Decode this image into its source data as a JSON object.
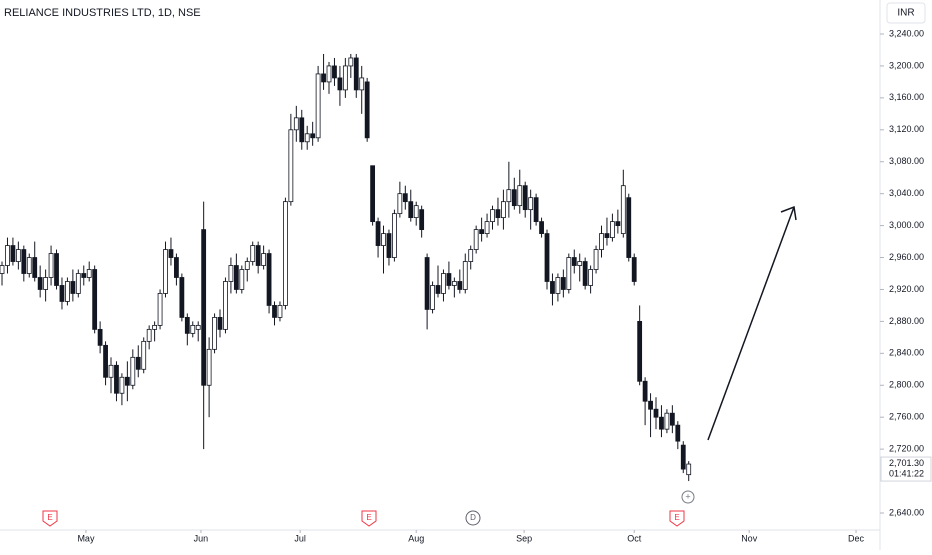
{
  "chart_data": {
    "type": "candlestick",
    "title": "RELIANCE INDUSTRIES LTD, 1D, NSE",
    "currency": "INR",
    "last_price": {
      "value": 2701.3,
      "label": "2,701.30"
    },
    "countdown": "01:41:22",
    "events": [
      "E",
      "E",
      "D",
      "E"
    ],
    "ylim": [
      2618.7,
      3282.6
    ],
    "yticks": [
      {
        "value": 3240,
        "label": "3,240.00"
      },
      {
        "value": 3200,
        "label": "3,200.00"
      },
      {
        "value": 3160,
        "label": "3,160.00"
      },
      {
        "value": 3120,
        "label": "3,120.00"
      },
      {
        "value": 3080,
        "label": "3,080.00"
      },
      {
        "value": 3040,
        "label": "3,040.00"
      },
      {
        "value": 3000,
        "label": "3,000.00"
      },
      {
        "value": 2960,
        "label": "2,960.00"
      },
      {
        "value": 2920,
        "label": "2,920.00"
      },
      {
        "value": 2880,
        "label": "2,880.00"
      },
      {
        "value": 2840,
        "label": "2,840.00"
      },
      {
        "value": 2800,
        "label": "2,800.00"
      },
      {
        "value": 2760,
        "label": "2,760.00"
      },
      {
        "value": 2720,
        "label": "2,720.00"
      },
      {
        "value": 2640,
        "label": "2,640.00"
      }
    ],
    "xlim": [
      -0.37,
      161.1
    ],
    "xticks": [
      {
        "value": 15.4,
        "label": "May"
      },
      {
        "value": 36.5,
        "label": "Jun"
      },
      {
        "value": 54.7,
        "label": "Jul"
      },
      {
        "value": 76.0,
        "label": "Aug"
      },
      {
        "value": 95.8,
        "label": "Sep"
      },
      {
        "value": 116.0,
        "label": "Oct"
      },
      {
        "value": 137.1,
        "label": "Nov"
      },
      {
        "value": 156.7,
        "label": "Dec"
      }
    ],
    "ohlc": [
      [
        2940,
        2955,
        2925,
        2950
      ],
      [
        2950,
        2985,
        2940,
        2975
      ],
      [
        2975,
        2985,
        2950,
        2955
      ],
      [
        2955,
        2980,
        2945,
        2970
      ],
      [
        2970,
        2975,
        2930,
        2940
      ],
      [
        2940,
        2965,
        2935,
        2960
      ],
      [
        2960,
        2980,
        2930,
        2935
      ],
      [
        2935,
        2950,
        2910,
        2920
      ],
      [
        2920,
        2945,
        2905,
        2935
      ],
      [
        2935,
        2975,
        2925,
        2965
      ],
      [
        2965,
        2970,
        2920,
        2925
      ],
      [
        2925,
        2935,
        2895,
        2905
      ],
      [
        2905,
        2935,
        2900,
        2930
      ],
      [
        2930,
        2945,
        2905,
        2915
      ],
      [
        2915,
        2945,
        2910,
        2940
      ],
      [
        2940,
        2950,
        2925,
        2935
      ],
      [
        2935,
        2955,
        2930,
        2945
      ],
      [
        2945,
        2950,
        2865,
        2870
      ],
      [
        2870,
        2880,
        2840,
        2850
      ],
      [
        2850,
        2855,
        2800,
        2810
      ],
      [
        2810,
        2835,
        2790,
        2825
      ],
      [
        2825,
        2830,
        2780,
        2790
      ],
      [
        2790,
        2815,
        2775,
        2810
      ],
      [
        2810,
        2830,
        2780,
        2800
      ],
      [
        2800,
        2845,
        2795,
        2835
      ],
      [
        2835,
        2850,
        2810,
        2820
      ],
      [
        2820,
        2860,
        2815,
        2855
      ],
      [
        2855,
        2875,
        2845,
        2870
      ],
      [
        2870,
        2880,
        2855,
        2875
      ],
      [
        2875,
        2920,
        2870,
        2915
      ],
      [
        2915,
        2980,
        2910,
        2970
      ],
      [
        2970,
        2985,
        2950,
        2960
      ],
      [
        2960,
        2965,
        2925,
        2935
      ],
      [
        2935,
        2940,
        2880,
        2885
      ],
      [
        2885,
        2890,
        2850,
        2865
      ],
      [
        2865,
        2880,
        2860,
        2875
      ],
      [
        2870,
        2880,
        2855,
        2875
      ],
      [
        2995,
        3030,
        2720,
        2800
      ],
      [
        2800,
        2860,
        2760,
        2845
      ],
      [
        2845,
        2890,
        2840,
        2885
      ],
      [
        2885,
        2895,
        2860,
        2870
      ],
      [
        2870,
        2935,
        2865,
        2930
      ],
      [
        2930,
        2960,
        2915,
        2950
      ],
      [
        2950,
        2965,
        2915,
        2920
      ],
      [
        2920,
        2950,
        2915,
        2945
      ],
      [
        2945,
        2960,
        2930,
        2955
      ],
      [
        2955,
        2980,
        2950,
        2975
      ],
      [
        2975,
        2980,
        2940,
        2950
      ],
      [
        2950,
        2975,
        2945,
        2965
      ],
      [
        2965,
        2970,
        2890,
        2900
      ],
      [
        2900,
        2905,
        2875,
        2885
      ],
      [
        2885,
        2905,
        2880,
        2900
      ],
      [
        2900,
        3035,
        2895,
        3030
      ],
      [
        3030,
        3140,
        3025,
        3120
      ],
      [
        3120,
        3150,
        3105,
        3135
      ],
      [
        3135,
        3145,
        3095,
        3105
      ],
      [
        3105,
        3125,
        3095,
        3115
      ],
      [
        3115,
        3130,
        3100,
        3110
      ],
      [
        3110,
        3200,
        3105,
        3190
      ],
      [
        3190,
        3215,
        3170,
        3180
      ],
      [
        3180,
        3205,
        3165,
        3200
      ],
      [
        3200,
        3210,
        3175,
        3185
      ],
      [
        3185,
        3200,
        3150,
        3170
      ],
      [
        3170,
        3210,
        3160,
        3200
      ],
      [
        3200,
        3215,
        3185,
        3210
      ],
      [
        3210,
        3215,
        3160,
        3170
      ],
      [
        3170,
        3200,
        3140,
        3185
      ],
      [
        3180,
        3185,
        3105,
        3110
      ],
      [
        3075,
        3075,
        3000,
        3005
      ],
      [
        3005,
        3010,
        2960,
        2975
      ],
      [
        2975,
        3000,
        2940,
        2990
      ],
      [
        2990,
        2995,
        2950,
        2960
      ],
      [
        2960,
        3020,
        2955,
        3015
      ],
      [
        3015,
        3055,
        3010,
        3040
      ],
      [
        3040,
        3050,
        3020,
        3030
      ],
      [
        3030,
        3045,
        3005,
        3010
      ],
      [
        3010,
        3030,
        3000,
        3025
      ],
      [
        3020,
        3025,
        2985,
        2995
      ],
      [
        2960,
        2965,
        2870,
        2895
      ],
      [
        2895,
        2930,
        2890,
        2925
      ],
      [
        2925,
        2950,
        2910,
        2915
      ],
      [
        2915,
        2945,
        2905,
        2940
      ],
      [
        2940,
        2955,
        2920,
        2925
      ],
      [
        2925,
        2935,
        2910,
        2930
      ],
      [
        2930,
        2945,
        2915,
        2920
      ],
      [
        2920,
        2965,
        2915,
        2955
      ],
      [
        2955,
        2975,
        2945,
        2970
      ],
      [
        2970,
        3000,
        2965,
        2995
      ],
      [
        2995,
        3010,
        2980,
        2990
      ],
      [
        2990,
        3015,
        2985,
        3005
      ],
      [
        3005,
        3025,
        2995,
        3020
      ],
      [
        3020,
        3035,
        3000,
        3010
      ],
      [
        3010,
        3045,
        2995,
        3030
      ],
      [
        3030,
        3080,
        3010,
        3045
      ],
      [
        3045,
        3060,
        3020,
        3025
      ],
      [
        3025,
        3070,
        3015,
        3050
      ],
      [
        3050,
        3055,
        3010,
        3020
      ],
      [
        3020,
        3045,
        2995,
        3035
      ],
      [
        3035,
        3040,
        3000,
        3005
      ],
      [
        3005,
        3010,
        2985,
        2990
      ],
      [
        2990,
        2995,
        2920,
        2930
      ],
      [
        2930,
        2940,
        2900,
        2915
      ],
      [
        2915,
        2940,
        2905,
        2935
      ],
      [
        2935,
        2945,
        2910,
        2920
      ],
      [
        2920,
        2965,
        2915,
        2960
      ],
      [
        2960,
        2970,
        2940,
        2950
      ],
      [
        2950,
        2965,
        2930,
        2955
      ],
      [
        2955,
        2960,
        2920,
        2925
      ],
      [
        2925,
        2950,
        2915,
        2945
      ],
      [
        2945,
        2975,
        2940,
        2970
      ],
      [
        2970,
        3000,
        2960,
        2990
      ],
      [
        2990,
        3010,
        2975,
        2985
      ],
      [
        2985,
        3015,
        2980,
        3005
      ],
      [
        3005,
        3020,
        2990,
        3000
      ],
      [
        2990,
        3070,
        2985,
        3050
      ],
      [
        3035,
        3040,
        2955,
        2960
      ],
      [
        2960,
        2965,
        2925,
        2930
      ],
      [
        2880,
        2900,
        2800,
        2805
      ],
      [
        2805,
        2810,
        2750,
        2780
      ],
      [
        2780,
        2790,
        2735,
        2770
      ],
      [
        2770,
        2785,
        2745,
        2760
      ],
      [
        2760,
        2775,
        2735,
        2745
      ],
      [
        2745,
        2770,
        2740,
        2765
      ],
      [
        2765,
        2775,
        2740,
        2750
      ],
      [
        2750,
        2755,
        2720,
        2730
      ],
      [
        2725,
        2730,
        2690,
        2695
      ],
      [
        2688,
        2705,
        2680,
        2701.3
      ]
    ]
  }
}
